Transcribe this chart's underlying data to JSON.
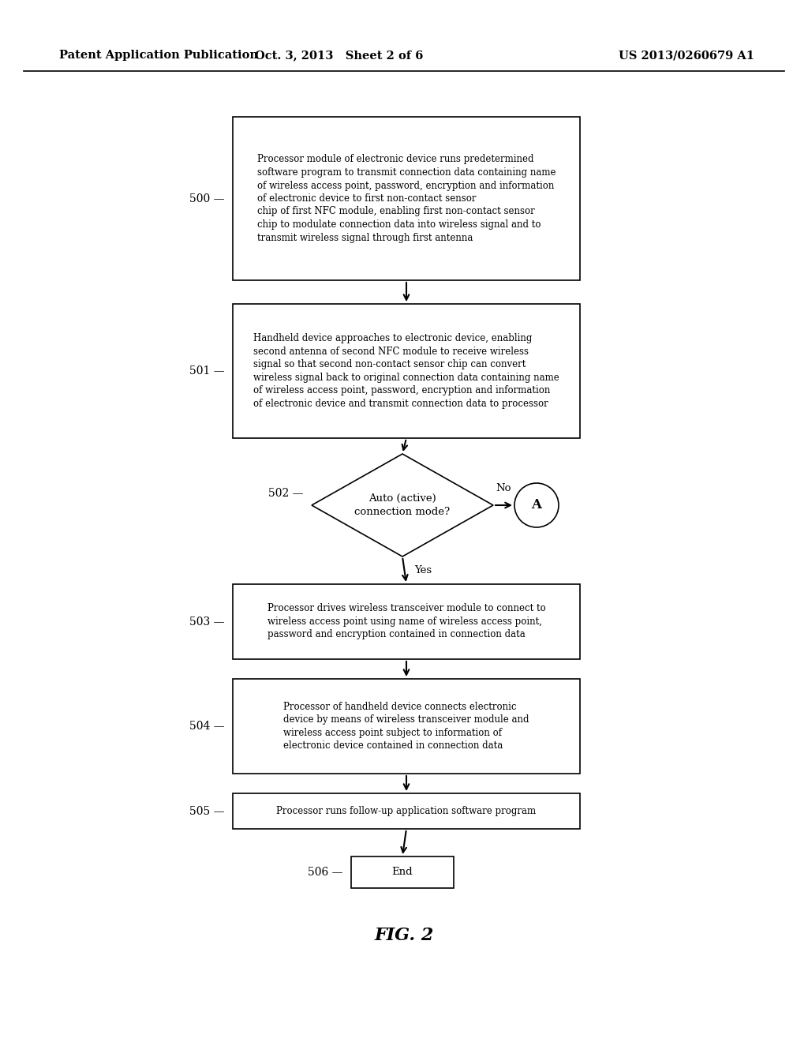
{
  "header_left": "Patent Application Publication",
  "header_center": "Oct. 3, 2013   Sheet 2 of 6",
  "header_right": "US 2013/0260679 A1",
  "fig_label": "FIG. 2",
  "background_color": "#ffffff",
  "box500_text": "Processor module of electronic device runs predetermined\nsoftware program to transmit connection data containing name\nof wireless access point, password, encryption and information\nof electronic device to first non-contact sensor\nchip of first NFC module, enabling first non-contact sensor\nchip to modulate connection data into wireless signal and to\ntransmit wireless signal through first antenna",
  "box501_text": "Handheld device approaches to electronic device, enabling\nsecond antenna of second NFC module to receive wireless\nsignal so that second non-contact sensor chip can convert\nwireless signal back to original connection data containing name\nof wireless access point, password, encryption and information\nof electronic device and transmit connection data to processor",
  "box502_text": "Auto (active)\nconnection mode?",
  "box503_text": "Processor drives wireless transceiver module to connect to\nwireless access point using name of wireless access point,\npassword and encryption contained in connection data",
  "box504_text": "Processor of handheld device connects electronic\ndevice by means of wireless transceiver module and\nwireless access point subject to information of\nelectronic device contained in connection data",
  "box505_text": "Processor runs follow-up application software program",
  "box506_text": "End",
  "label500": "500",
  "label501": "501",
  "label502": "502",
  "label503": "503",
  "label504": "504",
  "label505": "505",
  "label506": "506",
  "yes_text": "Yes",
  "no_text": "No",
  "circle_text": "A"
}
